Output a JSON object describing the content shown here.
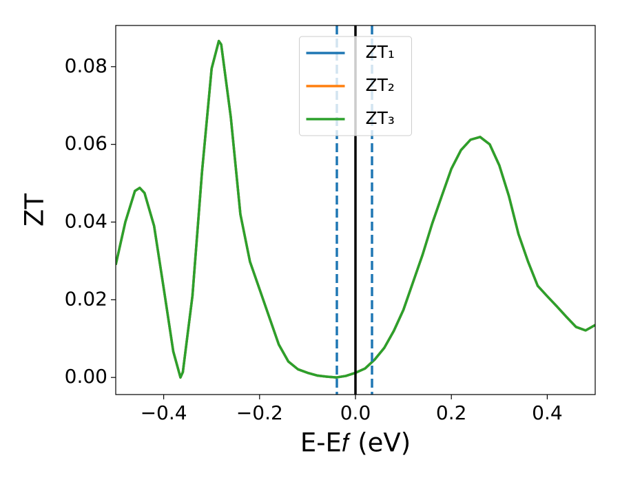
{
  "chart_data": {
    "type": "line",
    "xlabel": "E-E𝑓 (eV)",
    "ylabel": "ZT",
    "xlim": [
      -0.5,
      0.5
    ],
    "ylim": [
      -0.0044,
      0.0906
    ],
    "xticks": [
      {
        "value": -0.4,
        "label": "−0.4"
      },
      {
        "value": -0.2,
        "label": "−0.2"
      },
      {
        "value": 0,
        "label": "0.0"
      },
      0.2,
      0.4
    ],
    "yticks": [
      {
        "value": 0,
        "label": "0.00"
      },
      {
        "value": 0.02,
        "label": "0.02"
      },
      {
        "value": 0.04,
        "label": "0.04"
      },
      {
        "value": 0.06,
        "label": "0.06"
      },
      {
        "value": 0.08,
        "label": "0.08"
      }
    ],
    "legend": "upper center",
    "x": [
      -0.5,
      -0.48,
      -0.46,
      -0.45,
      -0.44,
      -0.42,
      -0.4,
      -0.38,
      -0.365,
      -0.36,
      -0.34,
      -0.32,
      -0.3,
      -0.285,
      -0.28,
      -0.26,
      -0.24,
      -0.22,
      -0.2,
      -0.18,
      -0.16,
      -0.14,
      -0.12,
      -0.1,
      -0.08,
      -0.06,
      -0.04,
      -0.02,
      0,
      0.02,
      0.04,
      0.06,
      0.08,
      0.1,
      0.12,
      0.14,
      0.16,
      0.18,
      0.2,
      0.22,
      0.24,
      0.26,
      0.28,
      0.3,
      0.32,
      0.34,
      0.36,
      0.38,
      0.4,
      0.42,
      0.44,
      0.46,
      0.48,
      0.5
    ],
    "series": [
      {
        "name": "ZT₁",
        "color": "#1f77b4",
        "values": [
          0.029,
          0.04,
          0.048,
          0.0488,
          0.0475,
          0.039,
          0.023,
          0.0067,
          0.0,
          0.0014,
          0.021,
          0.053,
          0.0795,
          0.0866,
          0.0857,
          0.067,
          0.042,
          0.0298,
          0.0227,
          0.0156,
          0.0085,
          0.0041,
          0.0021,
          0.0012,
          0.0005,
          0.0002,
          0.0,
          0.0004,
          0.0012,
          0.0023,
          0.0046,
          0.0076,
          0.012,
          0.0174,
          0.0245,
          0.0316,
          0.0396,
          0.0467,
          0.0537,
          0.0585,
          0.0612,
          0.0619,
          0.06,
          0.0546,
          0.0467,
          0.0369,
          0.0298,
          0.0236,
          0.0209,
          0.0183,
          0.0156,
          0.013,
          0.0121,
          0.0135
        ]
      },
      {
        "name": "ZT₂",
        "color": "#ff7f0e",
        "values": [
          0.029,
          0.04,
          0.048,
          0.0488,
          0.0475,
          0.039,
          0.023,
          0.0067,
          0.0,
          0.0014,
          0.021,
          0.053,
          0.0795,
          0.0866,
          0.0857,
          0.067,
          0.042,
          0.0298,
          0.0227,
          0.0156,
          0.0085,
          0.0041,
          0.0021,
          0.0012,
          0.0005,
          0.0002,
          0.0,
          0.0004,
          0.0012,
          0.0023,
          0.0046,
          0.0076,
          0.012,
          0.0174,
          0.0245,
          0.0316,
          0.0396,
          0.0467,
          0.0537,
          0.0585,
          0.0612,
          0.0619,
          0.06,
          0.0546,
          0.0467,
          0.0369,
          0.0298,
          0.0236,
          0.0209,
          0.0183,
          0.0156,
          0.013,
          0.0121,
          0.0135
        ]
      },
      {
        "name": "ZT₃",
        "color": "#2ca02c",
        "values": [
          0.029,
          0.04,
          0.048,
          0.0488,
          0.0475,
          0.039,
          0.023,
          0.0067,
          0.0,
          0.0014,
          0.021,
          0.053,
          0.0795,
          0.0866,
          0.0857,
          0.067,
          0.042,
          0.0298,
          0.0227,
          0.0156,
          0.0085,
          0.0041,
          0.0021,
          0.0012,
          0.0005,
          0.0002,
          0.0,
          0.0004,
          0.0012,
          0.0023,
          0.0046,
          0.0076,
          0.012,
          0.0174,
          0.0245,
          0.0316,
          0.0396,
          0.0467,
          0.0537,
          0.0585,
          0.0612,
          0.0619,
          0.06,
          0.0546,
          0.0467,
          0.0369,
          0.0298,
          0.0236,
          0.0209,
          0.0183,
          0.0156,
          0.013,
          0.0121,
          0.0135
        ]
      }
    ],
    "vlines": [
      {
        "x": 0,
        "color": "#000000",
        "style": "solid"
      },
      {
        "x": -0.0388,
        "color": "#1f77b4",
        "style": "dashed"
      },
      {
        "x": 0.0345,
        "color": "#1f77b4",
        "style": "dashed"
      }
    ]
  }
}
